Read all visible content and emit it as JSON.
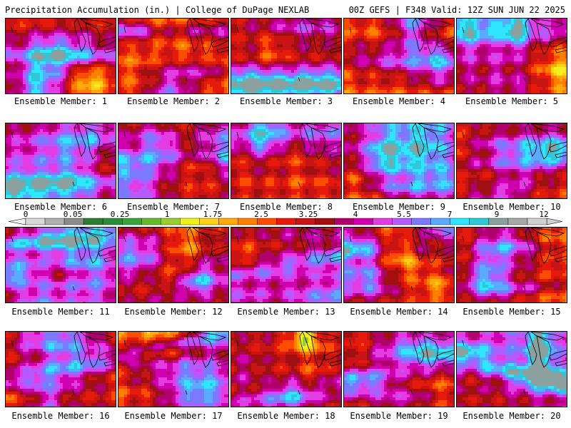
{
  "header": {
    "left": "Precipitation Accumulation (in.) | College of DuPage NEXLAB",
    "right": "00Z GEFS | F348 Valid: 12Z SUN JUN 22 2025"
  },
  "colorbar": {
    "tick_labels": [
      "0",
      "0.05",
      "0.25",
      "1",
      "1.75",
      "2.5",
      "3.25",
      "4",
      "5.5",
      "7",
      "9",
      "12"
    ],
    "colors": [
      "#d9d9d9",
      "#b0b0b0",
      "#8c8c8c",
      "#2e7d32",
      "#2e8b3a",
      "#3aa43a",
      "#66bb2e",
      "#9acd32",
      "#f2f21a",
      "#ffd21a",
      "#ffaa0a",
      "#ff7f00",
      "#ff4d00",
      "#e61a0a",
      "#c81414",
      "#a01010",
      "#b0006e",
      "#d000b0",
      "#e23ce2",
      "#b45aff",
      "#7a7aff",
      "#5aaaff",
      "#2ee6ff",
      "#2ec8d8",
      "#8ca0a0",
      "#a8a8a8",
      "#d0d0d0"
    ]
  },
  "members": [
    {
      "label": "Ensemble Member: 1"
    },
    {
      "label": "Ensemble Member: 2"
    },
    {
      "label": "Ensemble Member: 3"
    },
    {
      "label": "Ensemble Member: 4"
    },
    {
      "label": "Ensemble Member: 5"
    },
    {
      "label": "Ensemble Member: 6"
    },
    {
      "label": "Ensemble Member: 7"
    },
    {
      "label": "Ensemble Member: 8"
    },
    {
      "label": "Ensemble Member: 9"
    },
    {
      "label": "Ensemble Member: 10"
    },
    {
      "label": "Ensemble Member: 11"
    },
    {
      "label": "Ensemble Member: 12"
    },
    {
      "label": "Ensemble Member: 13"
    },
    {
      "label": "Ensemble Member: 14"
    },
    {
      "label": "Ensemble Member: 15"
    },
    {
      "label": "Ensemble Member: 16"
    },
    {
      "label": "Ensemble Member: 17"
    },
    {
      "label": "Ensemble Member: 18"
    },
    {
      "label": "Ensemble Member: 19"
    },
    {
      "label": "Ensemble Member: 20"
    }
  ]
}
